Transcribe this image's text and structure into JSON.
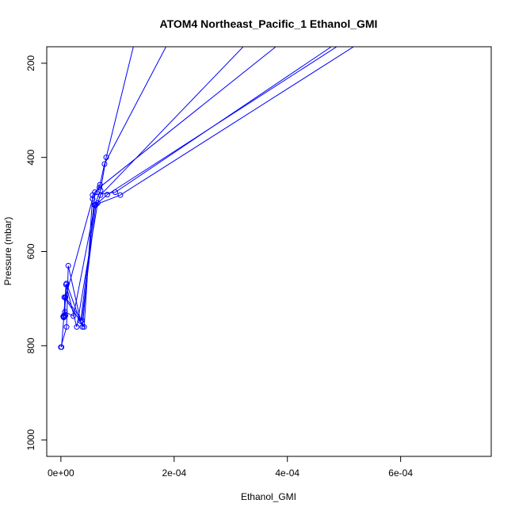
{
  "chart_data": {
    "type": "line",
    "title": "ATOM4 Northeast_Pacific_1 Ethanol_GMI",
    "xlabel": "Ethanol_GMI",
    "ylabel": "Pressure (mbar)",
    "xlim": [
      -2.5e-05,
      0.00076
    ],
    "ylim": [
      1035,
      165
    ],
    "y_reversed": true,
    "x_ticks": [
      {
        "value": 0,
        "label": "0e+00"
      },
      {
        "value": 0.0002,
        "label": "2e-04"
      },
      {
        "value": 0.0004,
        "label": "4e-04"
      },
      {
        "value": 0.0006,
        "label": "6e-04"
      }
    ],
    "y_ticks": [
      {
        "value": 200,
        "label": "200"
      },
      {
        "value": 400,
        "label": "400"
      },
      {
        "value": 600,
        "label": "600"
      },
      {
        "value": 800,
        "label": "800"
      },
      {
        "value": 1000,
        "label": "1000"
      }
    ],
    "grid": false,
    "color": "#0000ff",
    "marker": "open-circle",
    "series": [
      {
        "x": [
          0.0,
          1e-05,
          1.3e-05,
          3.5e-05,
          6e-05,
          7e-05,
          8e-05,
          0.00013
        ],
        "y": [
          803,
          760,
          630,
          748,
          500,
          470,
          400,
          155
        ]
      },
      {
        "x": [
          1e-06,
          8e-06,
          5.6e-05,
          6.9e-05,
          7.7e-05,
          0.00019
        ],
        "y": [
          803,
          698,
          488,
          458,
          414,
          155
        ]
      },
      {
        "x": [
          5e-06,
          9e-06,
          2.8e-05,
          6.5e-05,
          7e-05,
          0.00033
        ],
        "y": [
          740,
          670,
          760,
          497,
          480,
          155
        ]
      },
      {
        "x": [
          6e-06,
          1e-05,
          3.8e-05,
          6e-05,
          6.8e-05,
          0.00039
        ],
        "y": [
          738,
          668,
          760,
          474,
          464,
          155
        ]
      },
      {
        "x": [
          8e-06,
          6e-06,
          4.1e-05,
          5.6e-05,
          9.6e-05,
          0.00049
        ],
        "y": [
          736,
          697,
          760,
          480,
          474,
          155
        ]
      },
      {
        "x": [
          4e-06,
          7e-06,
          2.2e-05,
          6e-05,
          8.2e-05,
          0.0005
        ],
        "y": [
          738,
          728,
          737,
          502,
          479,
          155
        ]
      },
      {
        "x": [
          5e-06,
          8e-06,
          3.7e-05,
          6.2e-05,
          0.000105,
          0.00053
        ],
        "y": [
          736,
          697,
          746,
          500,
          480,
          155
        ]
      }
    ]
  }
}
